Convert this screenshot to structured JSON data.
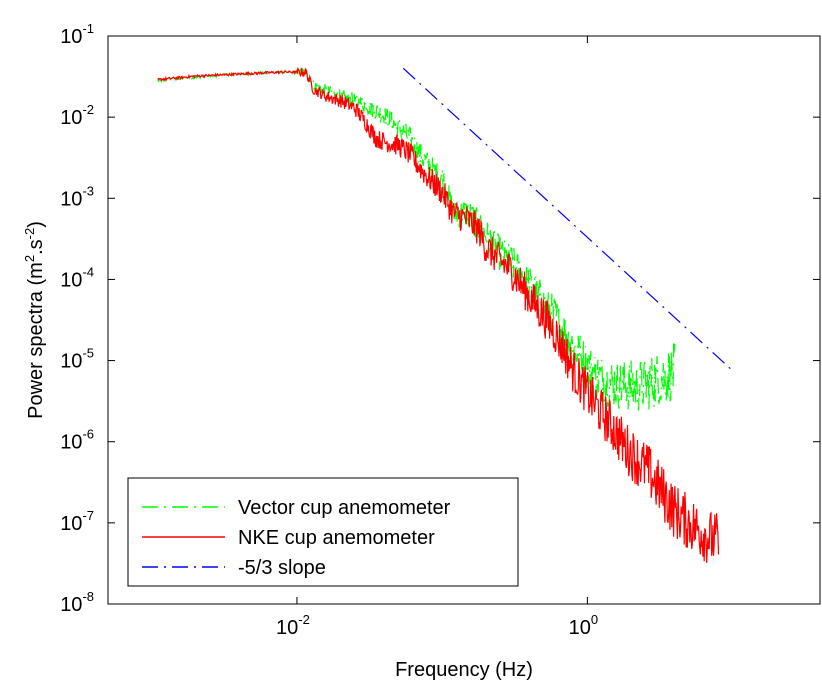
{
  "chart_data": {
    "type": "line",
    "title": "",
    "xlabel": "Frequency (Hz)",
    "ylabel_main": "Power spectra (m",
    "ylabel_sup1": "2",
    "ylabel_mid": ".s",
    "ylabel_sup2": "-2",
    "ylabel_end": ")",
    "x_scale": "log",
    "y_scale": "log",
    "xlim": [
      0.0005,
      40
    ],
    "ylim": [
      1e-08,
      0.1
    ],
    "grid": false,
    "legend_placement": "bottom-left",
    "x_ticks": [
      {
        "value": 0.01,
        "base": "10",
        "exp": "-2"
      },
      {
        "value": 1,
        "base": "10",
        "exp": "0"
      }
    ],
    "y_ticks": [
      {
        "value": 1e-08,
        "base": "10",
        "exp": "-8"
      },
      {
        "value": 1e-07,
        "base": "10",
        "exp": "-7"
      },
      {
        "value": 1e-06,
        "base": "10",
        "exp": "-6"
      },
      {
        "value": 1e-05,
        "base": "10",
        "exp": "-5"
      },
      {
        "value": 0.0001,
        "base": "10",
        "exp": "-4"
      },
      {
        "value": 0.001,
        "base": "10",
        "exp": "-3"
      },
      {
        "value": 0.01,
        "base": "10",
        "exp": "-2"
      },
      {
        "value": 0.1,
        "base": "10",
        "exp": "-1"
      }
    ],
    "series": [
      {
        "name": "Vector cup anemometer",
        "color": "#00ff00",
        "dash": "dashdot",
        "x": [
          0.0011,
          0.002,
          0.004,
          0.008,
          0.0115,
          0.013,
          0.016,
          0.02,
          0.025,
          0.03,
          0.035,
          0.04,
          0.05,
          0.06,
          0.07,
          0.08,
          0.1,
          0.12,
          0.15,
          0.18,
          0.2,
          0.25,
          0.3,
          0.4,
          0.5,
          0.6,
          0.7,
          0.8,
          1.0,
          1.2,
          1.5,
          1.8,
          2.2,
          2.6,
          3.0,
          3.5,
          4.0
        ],
        "y": [
          0.028,
          0.031,
          0.034,
          0.036,
          0.035,
          0.025,
          0.021,
          0.018,
          0.016,
          0.014,
          0.012,
          0.0105,
          0.0075,
          0.0055,
          0.0035,
          0.0026,
          0.0018,
          0.00065,
          0.00065,
          0.00045,
          0.00035,
          0.00021,
          0.00016,
          8.5e-05,
          5e-05,
          3.4e-05,
          2.2e-05,
          1.5e-05,
          8.5e-06,
          6.2e-06,
          5.2e-06,
          5e-06,
          4.8e-06,
          5.2e-06,
          5.8e-06,
          6.4e-06,
          7.5e-06
        ]
      },
      {
        "name": "NKE cup anemometer",
        "color": "#ff0000",
        "dash": "solid",
        "x": [
          0.0011,
          0.002,
          0.004,
          0.008,
          0.0115,
          0.013,
          0.016,
          0.02,
          0.025,
          0.03,
          0.035,
          0.04,
          0.05,
          0.06,
          0.07,
          0.08,
          0.1,
          0.12,
          0.15,
          0.18,
          0.2,
          0.25,
          0.3,
          0.4,
          0.5,
          0.6,
          0.7,
          0.8,
          1.0,
          1.2,
          1.5,
          1.8,
          2.2,
          2.6,
          3.0,
          3.5,
          4.0,
          5.0,
          6.0,
          7.0,
          8.0
        ],
        "y": [
          0.029,
          0.032,
          0.034,
          0.036,
          0.036,
          0.022,
          0.018,
          0.016,
          0.013,
          0.0085,
          0.0055,
          0.005,
          0.0045,
          0.0035,
          0.0024,
          0.0018,
          0.0012,
          0.00065,
          0.00055,
          0.0004,
          0.00025,
          0.00017,
          0.00013,
          6e-05,
          3.6e-05,
          2.2e-05,
          1.3e-05,
          7.5e-06,
          4e-06,
          2.5e-06,
          1.5e-06,
          9e-07,
          6e-07,
          4.5e-07,
          3e-07,
          2e-07,
          1.4e-07,
          1e-07,
          8e-08,
          6.5e-08,
          6e-08
        ]
      },
      {
        "name": "-5/3 slope",
        "color": "#0000ff",
        "dash": "dashdot",
        "x": [
          0.054,
          10
        ],
        "y": [
          0.04,
          7.5e-06
        ]
      }
    ]
  }
}
